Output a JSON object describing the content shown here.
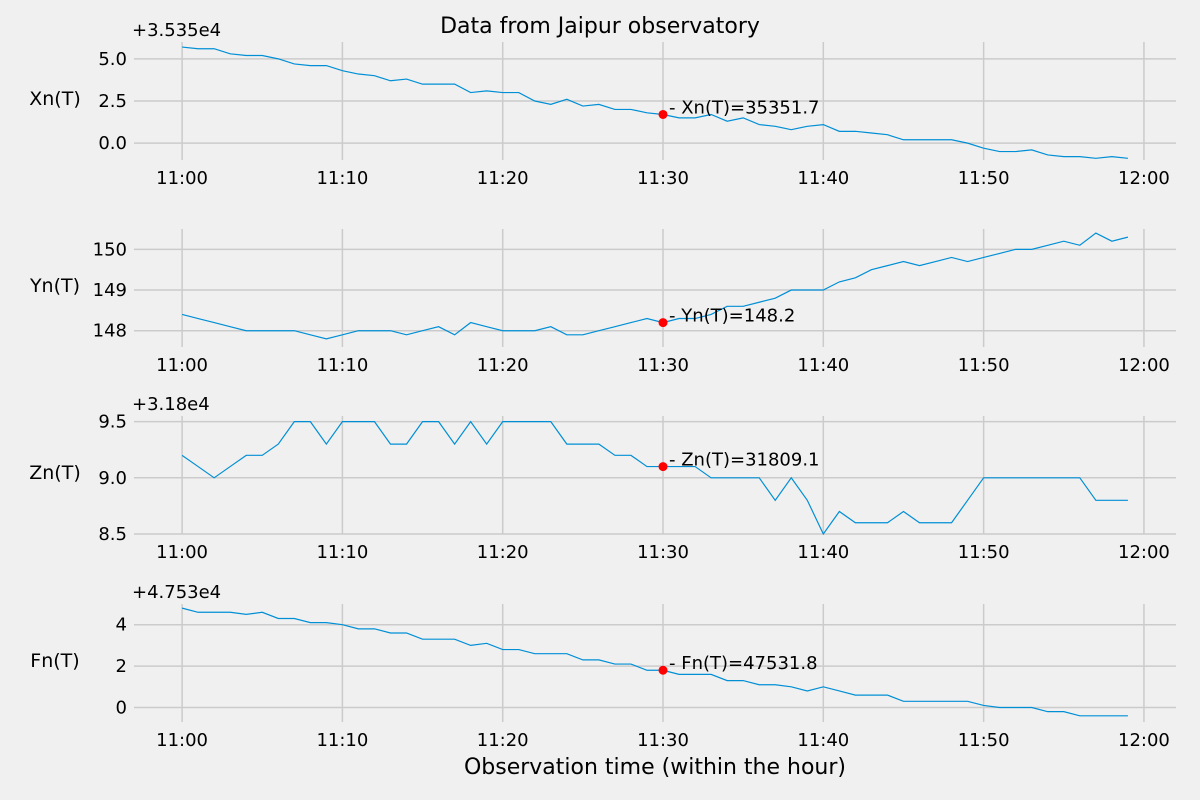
{
  "title": "Data from  Jaipur observatory",
  "xlabel": "Observation time (within the hour)",
  "colors": {
    "background": "#f0f0f0",
    "line": "#008fd5",
    "marker": "#ff0000",
    "grid": "#cbcbcb"
  },
  "chart_data": [
    {
      "type": "line",
      "ylabel": "Xn(T)",
      "offset_label": "+3.535e4",
      "offset": 35350,
      "xlim": [
        57,
        122
      ],
      "ylim": [
        -1.0,
        6.0
      ],
      "x_ticks": [
        60,
        70,
        80,
        90,
        100,
        110,
        120
      ],
      "x_tick_labels": [
        "11:00",
        "11:10",
        "11:20",
        "11:30",
        "11:40",
        "11:50",
        "12:00"
      ],
      "y_ticks": [
        0,
        2.5,
        5
      ],
      "y_tick_labels": [
        "0.0",
        "2.5",
        "5.0"
      ],
      "series": [
        {
          "values": [
            5.7,
            5.6,
            5.6,
            5.3,
            5.2,
            5.2,
            5.0,
            4.7,
            4.6,
            4.6,
            4.3,
            4.1,
            4.0,
            3.7,
            3.8,
            3.5,
            3.5,
            3.5,
            3.0,
            3.1,
            3.0,
            3.0,
            2.5,
            2.3,
            2.6,
            2.2,
            2.3,
            2.0,
            2.0,
            1.8,
            1.7,
            1.5,
            1.5,
            1.7,
            1.3,
            1.5,
            1.1,
            1.0,
            0.8,
            1.0,
            1.1,
            0.7,
            0.7,
            0.6,
            0.5,
            0.2,
            0.2,
            0.2,
            0.2,
            0.0,
            -0.3,
            -0.5,
            -0.5,
            -0.4,
            -0.7,
            -0.8,
            -0.8,
            -0.9,
            -0.8,
            -0.9
          ]
        }
      ],
      "annotation": {
        "x": 90,
        "y": 1.7,
        "label": "- Xn(T)=35351.7"
      }
    },
    {
      "type": "line",
      "ylabel": "Yn(T)",
      "offset_label": "",
      "offset": 0,
      "xlim": [
        57,
        122
      ],
      "ylim": [
        147.6,
        150.5
      ],
      "x_ticks": [
        60,
        70,
        80,
        90,
        100,
        110,
        120
      ],
      "x_tick_labels": [
        "11:00",
        "11:10",
        "11:20",
        "11:30",
        "11:40",
        "11:50",
        "12:00"
      ],
      "y_ticks": [
        148,
        149,
        150
      ],
      "y_tick_labels": [
        "148",
        "149",
        "150"
      ],
      "series": [
        {
          "values": [
            148.4,
            148.3,
            148.2,
            148.1,
            148.0,
            148.0,
            148.0,
            148.0,
            147.9,
            147.8,
            147.9,
            148.0,
            148.0,
            148.0,
            147.9,
            148.0,
            148.1,
            147.9,
            148.2,
            148.1,
            148.0,
            148.0,
            148.0,
            148.1,
            147.9,
            147.9,
            148.0,
            148.1,
            148.2,
            148.3,
            148.2,
            148.3,
            148.3,
            148.4,
            148.6,
            148.6,
            148.7,
            148.8,
            149.0,
            149.0,
            149.0,
            149.2,
            149.3,
            149.5,
            149.6,
            149.7,
            149.6,
            149.7,
            149.8,
            149.7,
            149.8,
            149.9,
            150.0,
            150.0,
            150.1,
            150.2,
            150.1,
            150.4,
            150.2,
            150.3
          ]
        }
      ],
      "annotation": {
        "x": 90,
        "y": 148.2,
        "label": "- Yn(T)=148.2"
      }
    },
    {
      "type": "line",
      "ylabel": "Zn(T)",
      "offset_label": "+3.18e4",
      "offset": 31800,
      "xlim": [
        57,
        122
      ],
      "ylim": [
        8.5,
        9.55
      ],
      "x_ticks": [
        60,
        70,
        80,
        90,
        100,
        110,
        120
      ],
      "x_tick_labels": [
        "11:00",
        "11:10",
        "11:20",
        "11:30",
        "11:40",
        "11:50",
        "12:00"
      ],
      "y_ticks": [
        8.5,
        9.0,
        9.5
      ],
      "y_tick_labels": [
        "8.5",
        "9.0",
        "9.5"
      ],
      "series": [
        {
          "values": [
            9.2,
            9.1,
            9.0,
            9.1,
            9.2,
            9.2,
            9.3,
            9.5,
            9.5,
            9.3,
            9.5,
            9.5,
            9.5,
            9.3,
            9.3,
            9.5,
            9.5,
            9.3,
            9.5,
            9.3,
            9.5,
            9.5,
            9.5,
            9.5,
            9.3,
            9.3,
            9.3,
            9.2,
            9.2,
            9.1,
            9.1,
            9.1,
            9.1,
            9.0,
            9.0,
            9.0,
            9.0,
            8.8,
            9.0,
            8.8,
            8.5,
            8.7,
            8.6,
            8.6,
            8.6,
            8.7,
            8.6,
            8.6,
            8.6,
            8.8,
            9.0,
            9.0,
            9.0,
            9.0,
            9.0,
            9.0,
            9.0,
            8.8,
            8.8,
            8.8
          ]
        }
      ],
      "annotation": {
        "x": 90,
        "y": 9.1,
        "label": "- Zn(T)=31809.1"
      }
    },
    {
      "type": "line",
      "ylabel": "Fn(T)",
      "offset_label": "+4.753e4",
      "offset": 47530,
      "xlim": [
        57,
        122
      ],
      "ylim": [
        -0.7,
        5.0
      ],
      "x_ticks": [
        60,
        70,
        80,
        90,
        100,
        110,
        120
      ],
      "x_tick_labels": [
        "11:00",
        "11:10",
        "11:20",
        "11:30",
        "11:40",
        "11:50",
        "12:00"
      ],
      "y_ticks": [
        0,
        2,
        4
      ],
      "y_tick_labels": [
        "0",
        "2",
        "4"
      ],
      "series": [
        {
          "values": [
            4.8,
            4.6,
            4.6,
            4.6,
            4.5,
            4.6,
            4.3,
            4.3,
            4.1,
            4.1,
            4.0,
            3.8,
            3.8,
            3.6,
            3.6,
            3.3,
            3.3,
            3.3,
            3.0,
            3.1,
            2.8,
            2.8,
            2.6,
            2.6,
            2.6,
            2.3,
            2.3,
            2.1,
            2.1,
            1.8,
            1.8,
            1.6,
            1.6,
            1.6,
            1.3,
            1.3,
            1.1,
            1.1,
            1.0,
            0.8,
            1.0,
            0.8,
            0.6,
            0.6,
            0.6,
            0.3,
            0.3,
            0.3,
            0.3,
            0.3,
            0.1,
            0.0,
            0.0,
            0.0,
            -0.2,
            -0.2,
            -0.4,
            -0.4,
            -0.4,
            -0.4
          ]
        }
      ],
      "annotation": {
        "x": 90,
        "y": 1.8,
        "label": "- Fn(T)=47531.8"
      }
    }
  ]
}
